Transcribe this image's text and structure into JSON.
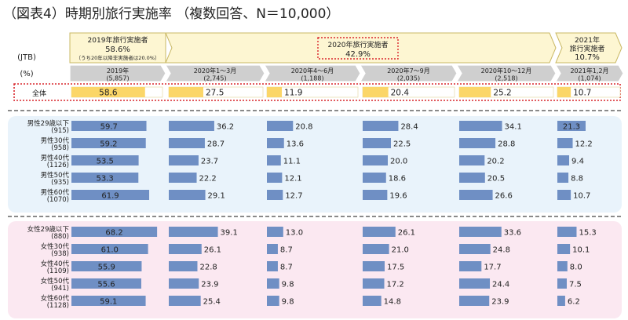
{
  "title": "（図表4）時期別旅行実施率 （複数回答、N＝10,000）",
  "source_label": "(JTB)",
  "unit_label": "(%)",
  "period_banners": [
    {
      "lines": [
        "2019年旅行実施者",
        "58.6%",
        "（うち20年以降非実施者は20.0%）"
      ]
    },
    {
      "lines": [
        "2020年旅行実施者",
        "42.9%"
      ]
    },
    {
      "lines": [
        "2021年",
        "旅行実施者",
        "10.7%"
      ]
    }
  ],
  "chart_data": {
    "type": "bar",
    "orientation": "horizontal",
    "title": "（図表4）時期別旅行実施率 （複数回答、N＝10,000）",
    "columns": [
      {
        "label": "2019年",
        "n": "(5,857)"
      },
      {
        "label": "2020年1～3月",
        "n": "(2,745)"
      },
      {
        "label": "2020年4～6月",
        "n": "(1,188)"
      },
      {
        "label": "2020年7～9月",
        "n": "(2,035)"
      },
      {
        "label": "2020年10～12月",
        "n": "(2,518)"
      },
      {
        "label": "2021年1,2月",
        "n": "(1,074)"
      }
    ],
    "total": {
      "label": "全体",
      "values": [
        58.6,
        27.5,
        11.9,
        20.4,
        25.2,
        10.7
      ]
    },
    "male": [
      {
        "label": "男性29歳以下",
        "n": "(915)",
        "values": [
          59.7,
          36.2,
          20.8,
          28.4,
          34.1,
          21.3
        ]
      },
      {
        "label": "男性30代",
        "n": "(958)",
        "values": [
          59.2,
          28.7,
          13.6,
          22.5,
          28.8,
          12.2
        ]
      },
      {
        "label": "男性40代",
        "n": "(1126)",
        "values": [
          53.5,
          23.7,
          11.1,
          20.0,
          20.2,
          9.4
        ]
      },
      {
        "label": "男性50代",
        "n": "(935)",
        "values": [
          53.3,
          22.2,
          12.1,
          18.6,
          20.5,
          8.8
        ]
      },
      {
        "label": "男性60代",
        "n": "(1070)",
        "values": [
          61.9,
          29.1,
          12.7,
          19.6,
          26.6,
          10.7
        ]
      }
    ],
    "female": [
      {
        "label": "女性29歳以下",
        "n": "(880)",
        "values": [
          68.2,
          39.1,
          13.0,
          26.1,
          33.6,
          15.3
        ]
      },
      {
        "label": "女性30代",
        "n": "(938)",
        "values": [
          61.0,
          26.1,
          8.7,
          21.0,
          24.8,
          10.1
        ]
      },
      {
        "label": "女性40代",
        "n": "(1109)",
        "values": [
          55.9,
          22.8,
          8.7,
          17.5,
          17.7,
          8.0
        ]
      },
      {
        "label": "女性50代",
        "n": "(941)",
        "values": [
          55.6,
          23.9,
          9.8,
          17.2,
          24.4,
          7.5
        ]
      },
      {
        "label": "女性60代",
        "n": "(1128)",
        "values": [
          59.1,
          25.4,
          9.8,
          14.8,
          23.9,
          6.2
        ]
      }
    ],
    "xlim": [
      0,
      100
    ],
    "grid": false,
    "colors": {
      "total_bar": "#fbd668",
      "group_bar": "#6f8fc4",
      "male_band": "#e9f3fb",
      "female_band": "#fbe8f1",
      "banner_fill": "#fdf6d2",
      "banner_stroke": "#c9b864",
      "header_fill": "#cfcfcf",
      "highlight": "#d9262c"
    }
  }
}
